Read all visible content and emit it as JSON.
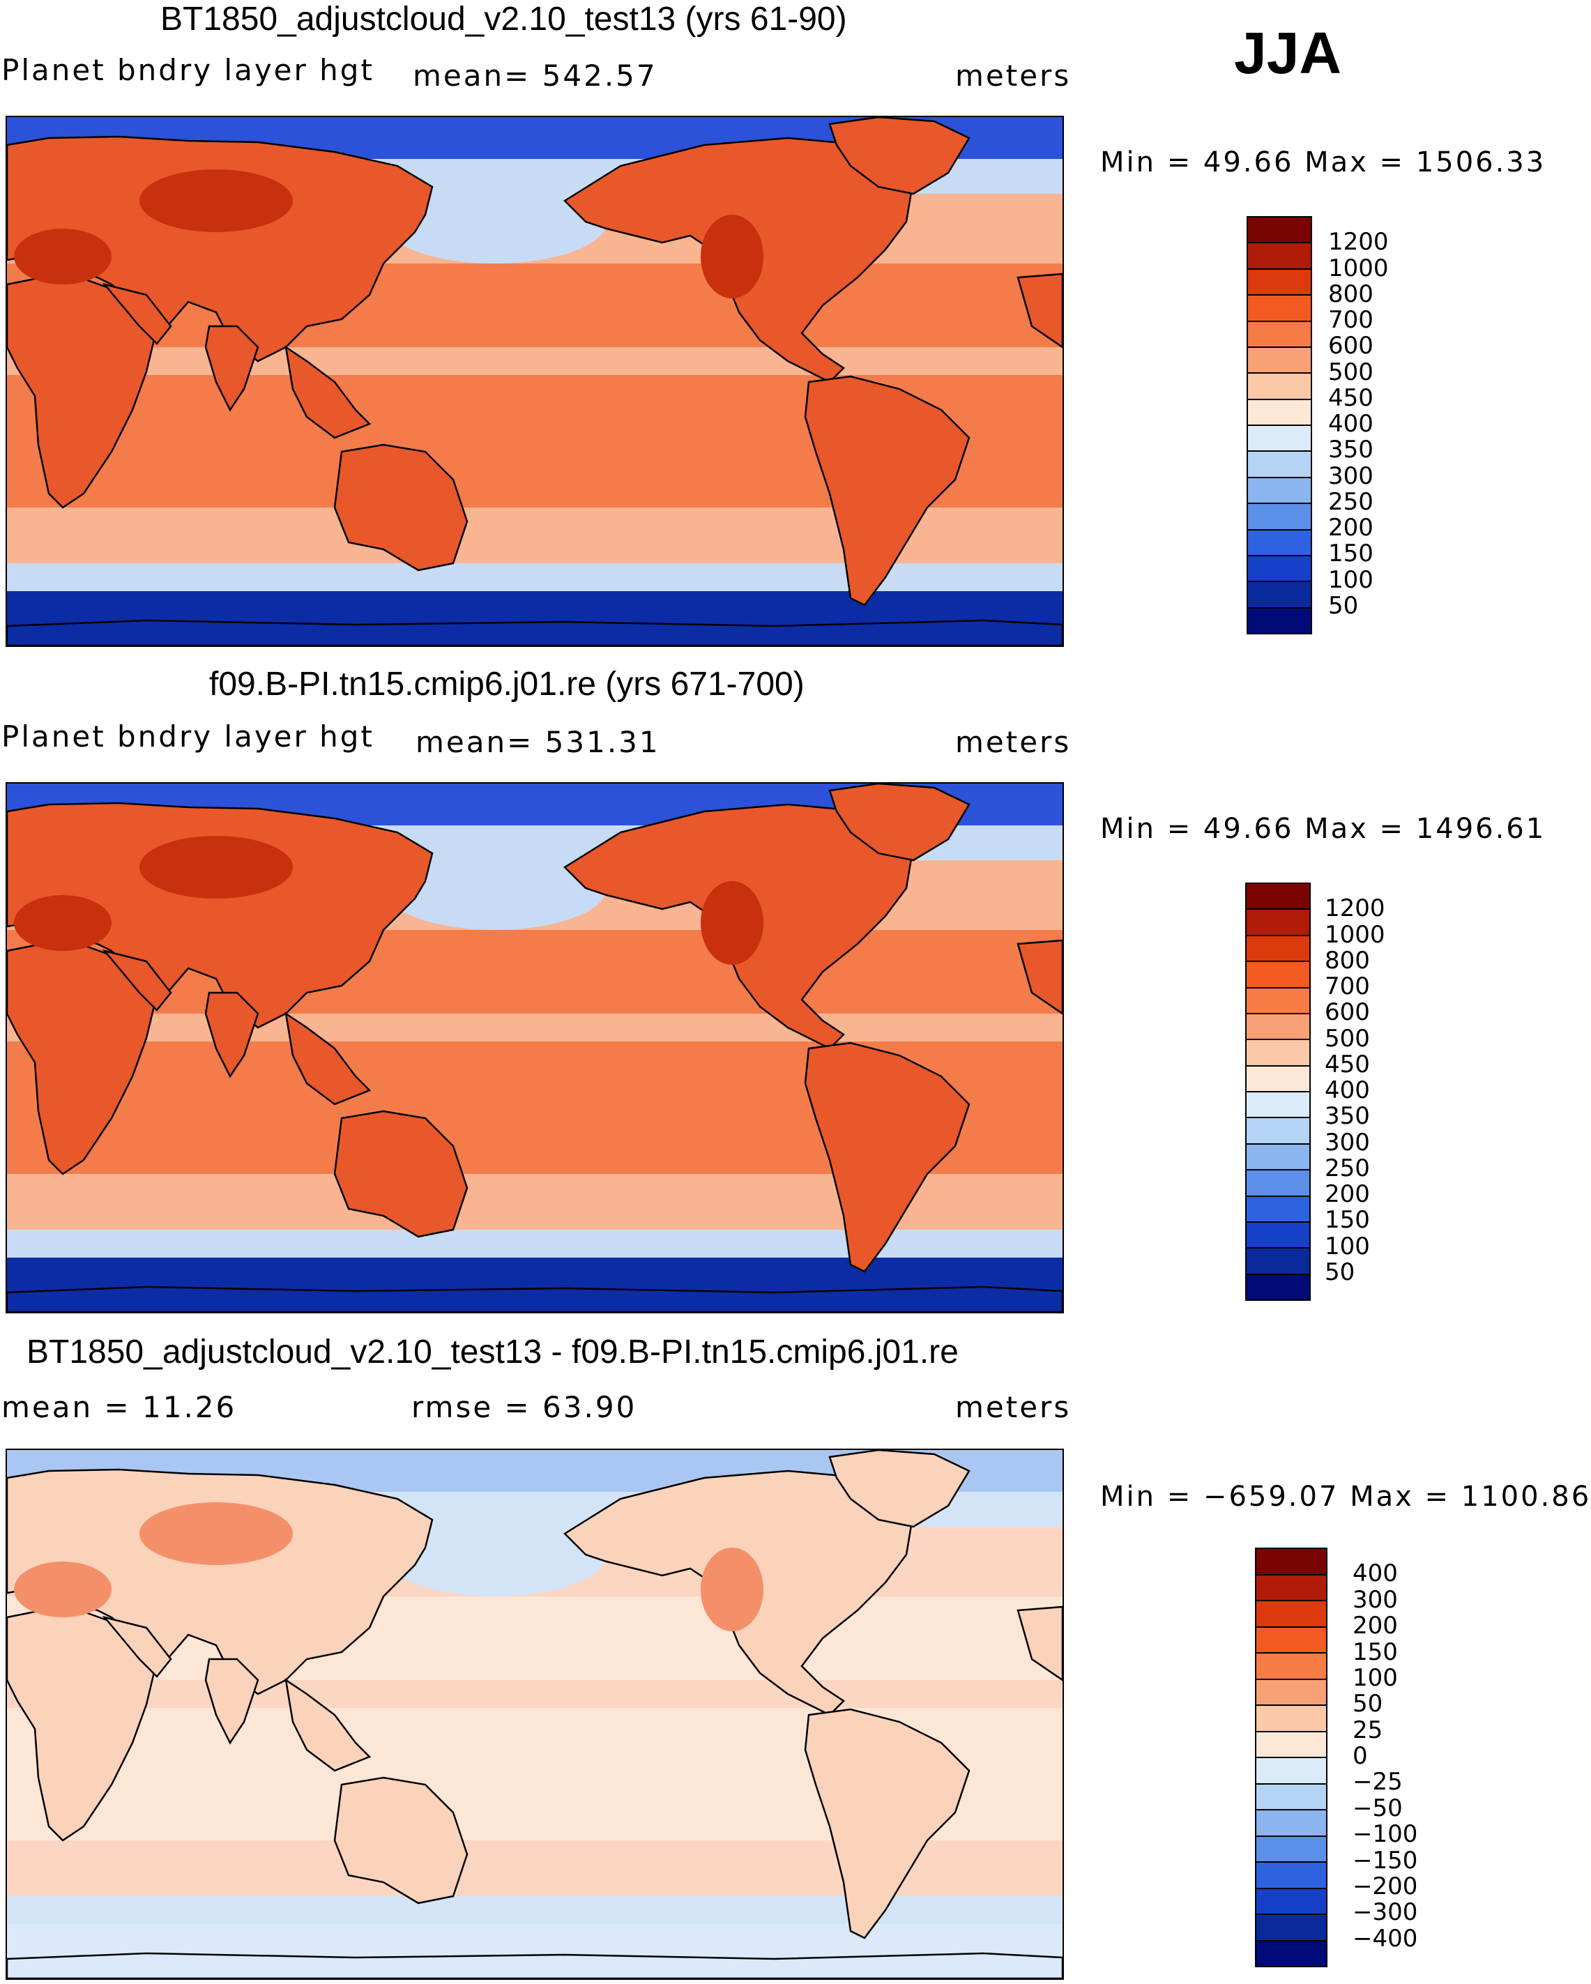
{
  "season": "JJA",
  "panels": [
    {
      "title": "BT1850_adjustcloud_v2.10_test13 (yrs 61-90)",
      "left_label": "Planet bndry layer hgt",
      "center_label": "mean= 542.57",
      "units": "meters",
      "minmax": "Min =   49.66 Max = 1506.33",
      "colorbar": {
        "labels": [
          "1200",
          "1000",
          "800",
          "700",
          "600",
          "500",
          "450",
          "400",
          "350",
          "300",
          "250",
          "200",
          "150",
          "100",
          "50"
        ],
        "colors": [
          "#7a0403",
          "#b01c07",
          "#dc3a0c",
          "#f25a22",
          "#f67b45",
          "#f9a176",
          "#fbc8a8",
          "#fde8d8",
          "#dcebf9",
          "#b5d3f5",
          "#8ab5ef",
          "#5c8fe8",
          "#2f62e0",
          "#1640c8",
          "#0a2a9c",
          "#000a78"
        ]
      },
      "palette": {
        "land": "#e9582a",
        "landhi": "#c9300e",
        "sea": "#f47c4a",
        "mid": "#f9b492",
        "cool": "#c8dbf5",
        "cold": "#2b52d8",
        "polar": "#0c2ca6"
      }
    },
    {
      "title": "f09.B-PI.tn15.cmip6.j01.re (yrs 671-700)",
      "left_label": "Planet bndry layer hgt",
      "center_label": "mean= 531.31",
      "units": "meters",
      "minmax": "Min =   49.66 Max = 1496.61",
      "colorbar": {
        "labels": [
          "1200",
          "1000",
          "800",
          "700",
          "600",
          "500",
          "450",
          "400",
          "350",
          "300",
          "250",
          "200",
          "150",
          "100",
          "50"
        ],
        "colors": [
          "#7a0403",
          "#b01c07",
          "#dc3a0c",
          "#f25a22",
          "#f67b45",
          "#f9a176",
          "#fbc8a8",
          "#fde8d8",
          "#dcebf9",
          "#b5d3f5",
          "#8ab5ef",
          "#5c8fe8",
          "#2f62e0",
          "#1640c8",
          "#0a2a9c",
          "#000a78"
        ]
      },
      "palette": {
        "land": "#e9582a",
        "landhi": "#c9300e",
        "sea": "#f47c4a",
        "mid": "#f9b492",
        "cool": "#c8dbf5",
        "cold": "#2b52d8",
        "polar": "#0c2ca6"
      }
    },
    {
      "title": "BT1850_adjustcloud_v2.10_test13 - f09.B-PI.tn15.cmip6.j01.re",
      "left_label": "mean =   11.26",
      "center_label": "rmse =   63.90",
      "units": "meters",
      "minmax": "Min = −659.07 Max = 1100.86",
      "colorbar": {
        "labels": [
          "400",
          "300",
          "200",
          "150",
          "100",
          "50",
          "25",
          "0",
          "−25",
          "−50",
          "−100",
          "−150",
          "−200",
          "−300",
          "−400"
        ],
        "colors": [
          "#7a0403",
          "#b01c07",
          "#dc3a0c",
          "#f25a22",
          "#f67b45",
          "#f9a176",
          "#fbc8a8",
          "#fde8d8",
          "#dcebf9",
          "#b5d3f5",
          "#8ab5ef",
          "#5c8fe8",
          "#2f62e0",
          "#1640c8",
          "#0a2a9c",
          "#000a78"
        ]
      },
      "palette": {
        "land": "#fbd2ba",
        "landhi": "#f49069",
        "sea": "#fde6d6",
        "mid": "#fbd6c2",
        "cool": "#d4e4f8",
        "cold": "#a9c7f2",
        "polar": "#dbe9fb"
      }
    }
  ]
}
